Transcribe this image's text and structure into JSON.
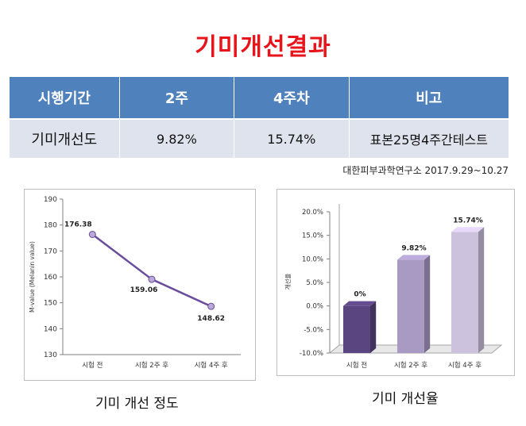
{
  "title": "기미개선결과",
  "summary_table": {
    "headers": [
      "시행기간",
      "2주",
      "4주차",
      "비고"
    ],
    "row": [
      "기미개선도",
      "9.82%",
      "15.74%",
      "표본25명4주간테스트"
    ]
  },
  "source_note": "대한피부과학연구소 2017.9.29~10.27",
  "captions": {
    "left": "기미 개선 정도",
    "right": "기미 개선율"
  },
  "colors": {
    "title": "#e8141b",
    "header_bg": "#4f81bd",
    "row_bg": "#dfe3ee",
    "line": "#6a4c9c",
    "marker": "#b9a9d6"
  },
  "chart_data": [
    {
      "type": "line",
      "categories": [
        "시험 전",
        "시험 2주 후",
        "시험 4주 후"
      ],
      "values": [
        176.38,
        159.06,
        148.62
      ],
      "data_labels": [
        "176.38",
        "159.06",
        "148.62"
      ],
      "ylabel": "M-value (Melanin value)",
      "ylim": [
        130,
        190
      ],
      "yticks": [
        "130",
        "140",
        "150",
        "160",
        "170",
        "180",
        "190"
      ],
      "grid": false
    },
    {
      "type": "bar",
      "categories": [
        "시험 전",
        "시험 2주 후",
        "시험 4주 후"
      ],
      "values": [
        0,
        9.82,
        15.74
      ],
      "data_labels": [
        "0%",
        "9.82%",
        "15.74%"
      ],
      "ylabel": "개선율",
      "ylim": [
        -10,
        20
      ],
      "yticks": [
        "-10.0%",
        "-5.0%",
        "0.0%",
        "5.0%",
        "10.0%",
        "15.0%",
        "20.0%"
      ],
      "bar_colors": [
        "#5b4580",
        "#a99ac4",
        "#cdc2de"
      ],
      "grid": false
    }
  ]
}
